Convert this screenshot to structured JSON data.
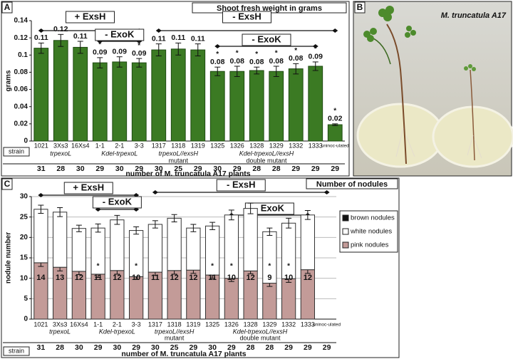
{
  "chart_data": [
    {
      "type": "bar",
      "panel": "A",
      "title": "Shoot fresh weight in grams",
      "ylabel": "grams",
      "xlabel": "number of M. truncatula A17 plants",
      "row_label": "strain",
      "categories": [
        "1021",
        "3Xs3",
        "16Xs4",
        "1-1",
        "2-1",
        "3-3",
        "1317",
        "1318",
        "1319",
        "1325",
        "1326",
        "1328",
        "1329",
        "1332",
        "1333",
        "uninoc-ulated"
      ],
      "counts": [
        31,
        28,
        30,
        29,
        30,
        29,
        30,
        25,
        29,
        30,
        29,
        28,
        28,
        29,
        29,
        29
      ],
      "strain_groups": [
        [
          "trpexoL"
        ],
        [
          "Kdel-trpexoL"
        ],
        [
          "trpexoL//exsH",
          "mutant"
        ],
        [
          "Kdel-trpexoL//exsH",
          "double mutant"
        ]
      ],
      "brackets": [
        "+ ExsH",
        "- ExoK",
        "- ExsH",
        "- ExoK"
      ],
      "values": [
        0.108,
        0.117,
        0.109,
        0.091,
        0.092,
        0.091,
        0.106,
        0.107,
        0.106,
        0.081,
        0.081,
        0.082,
        0.081,
        0.084,
        0.087,
        0.019
      ],
      "value_labels": [
        "0.11",
        "0.12",
        "0.11",
        "0.09",
        "0.09",
        "0.09",
        "0.11",
        "0.11",
        "0.11",
        "0.08",
        "0.08",
        "0.08",
        "0.08",
        "0.08",
        "0.09",
        "0.02"
      ],
      "errors": [
        0.006,
        0.007,
        0.007,
        0.006,
        0.006,
        0.005,
        0.007,
        0.007,
        0.007,
        0.005,
        0.006,
        0.004,
        0.006,
        0.006,
        0.005,
        0.001
      ],
      "significance_mark": "*",
      "significant": [
        false,
        false,
        false,
        true,
        false,
        true,
        false,
        false,
        false,
        true,
        true,
        true,
        true,
        true,
        true,
        true
      ],
      "color": "#3b7a23",
      "grid": false,
      "ylim": [
        0,
        0.14
      ],
      "yticks": [
        0,
        0.02,
        0.04,
        0.06,
        0.08,
        0.1,
        0.12,
        0.14
      ]
    },
    {
      "type": "stacked_bar",
      "panel": "C",
      "title": "Number of nodules",
      "ylabel": "nodule number",
      "xlabel": "number of M. truncatula A17 plants",
      "row_label": "strain",
      "categories": [
        "1021",
        "3Xs3",
        "16Xs4",
        "1-1",
        "2-1",
        "3-3",
        "1317",
        "1318",
        "1319",
        "1325",
        "1326",
        "1328",
        "1329",
        "1332",
        "1333",
        "uninoc-ulated"
      ],
      "counts": [
        31,
        28,
        30,
        29,
        30,
        29,
        30,
        25,
        29,
        30,
        29,
        28,
        28,
        29,
        29,
        29
      ],
      "strain_groups": [
        [
          "trpexoL"
        ],
        [
          "Kdel-trpexoL"
        ],
        [
          "trpexoL//exsH",
          "mutant"
        ],
        [
          "Kdel-trpexoL//exsH",
          "double mutant"
        ]
      ],
      "brackets": [
        "+ ExsH",
        "- ExoK",
        "- ExsH",
        "- ExoK"
      ],
      "significance_mark": "*",
      "significant": [
        false,
        false,
        false,
        true,
        false,
        true,
        false,
        false,
        false,
        true,
        true,
        false,
        true,
        true,
        false,
        false
      ],
      "grid": true,
      "ylim": [
        0,
        30
      ],
      "yticks": [
        0,
        5,
        10,
        15,
        20,
        25,
        30
      ],
      "series": [
        {
          "name": "pink nodules",
          "color": "#c39b98",
          "values": [
            13.8,
            12.7,
            11.7,
            11.0,
            11.9,
            10.4,
            11.5,
            11.9,
            12.0,
            10.8,
            10.0,
            11.8,
            8.8,
            9.9,
            12.1,
            0
          ],
          "value_labels": [
            "14",
            "13",
            "12",
            "11",
            "12",
            "10",
            "11",
            "12",
            "12",
            "11",
            "10",
            "12",
            "9",
            "10",
            "12",
            null
          ],
          "errors": [
            0.9,
            0.9,
            0.8,
            0.8,
            0.9,
            0.7,
            0.8,
            0.9,
            0.8,
            0.8,
            0.8,
            0.7,
            0.8,
            0.9,
            0.9,
            0
          ]
        },
        {
          "name": "white nodules",
          "color": "#ffffff",
          "values": [
            13.1,
            13.5,
            10.5,
            11.3,
            12.4,
            11.3,
            11.7,
            12.8,
            10.3,
            12.0,
            15.5,
            15.3,
            12.6,
            13.6,
            13.4,
            0
          ],
          "errors": [
            1.0,
            1.1,
            0.8,
            1.0,
            1.1,
            0.9,
            0.9,
            0.9,
            0.9,
            0.9,
            1.2,
            1.3,
            0.9,
            1.2,
            1.1,
            0
          ]
        },
        {
          "name": "brown nodules",
          "color": "#111111",
          "values": [
            0,
            0,
            0,
            0,
            0,
            0,
            0,
            0,
            0,
            0,
            0,
            0,
            0,
            0,
            0,
            0
          ]
        }
      ]
    }
  ],
  "photo_panel": {
    "panel": "B",
    "caption": "M. truncatula A17"
  }
}
